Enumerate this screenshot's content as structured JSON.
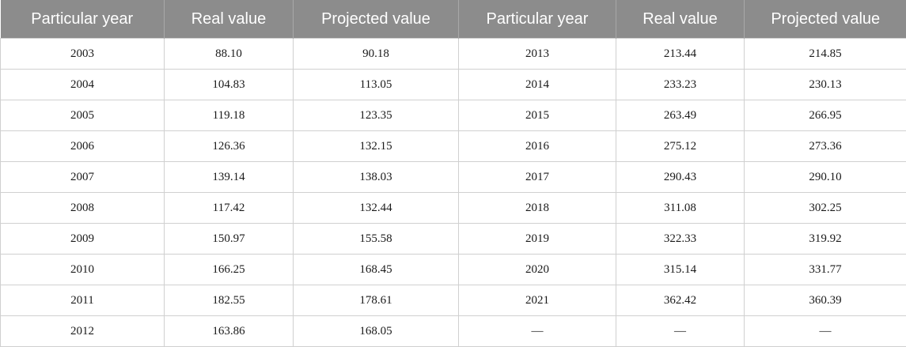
{
  "table": {
    "headers": [
      "Particular year",
      "Real value",
      "Projected value",
      "Particular year",
      "Real value",
      "Projected value"
    ],
    "rows": [
      [
        "2003",
        "88.10",
        "90.18",
        "2013",
        "213.44",
        "214.85"
      ],
      [
        "2004",
        "104.83",
        "113.05",
        "2014",
        "233.23",
        "230.13"
      ],
      [
        "2005",
        "119.18",
        "123.35",
        "2015",
        "263.49",
        "266.95"
      ],
      [
        "2006",
        "126.36",
        "132.15",
        "2016",
        "275.12",
        "273.36"
      ],
      [
        "2007",
        "139.14",
        "138.03",
        "2017",
        "290.43",
        "290.10"
      ],
      [
        "2008",
        "117.42",
        "132.44",
        "2018",
        "311.08",
        "302.25"
      ],
      [
        "2009",
        "150.97",
        "155.58",
        "2019",
        "322.33",
        "319.92"
      ],
      [
        "2010",
        "166.25",
        "168.45",
        "2020",
        "315.14",
        "331.77"
      ],
      [
        "2011",
        "182.55",
        "178.61",
        "2021",
        "362.42",
        "360.39"
      ],
      [
        "2012",
        "163.86",
        "168.05",
        "—",
        "—",
        "—"
      ]
    ]
  },
  "colors": {
    "header_background": "#8c8c8c",
    "header_text": "#ffffff",
    "grid_line": "#d0d0d0"
  }
}
